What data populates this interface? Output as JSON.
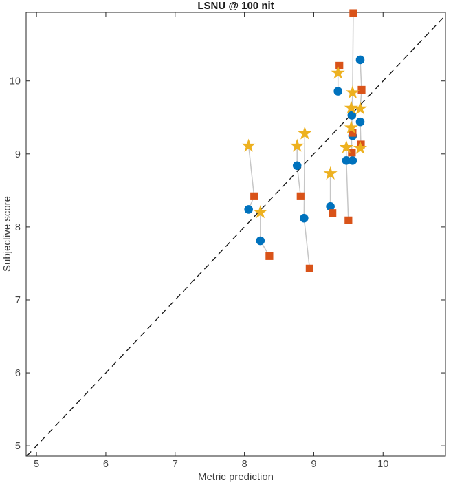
{
  "chart_data": {
    "type": "scatter",
    "title": "LSNU @ 100 nit",
    "xlabel": "Metric prediction",
    "ylabel": "Subjective score",
    "xlim": [
      4.85,
      10.9
    ],
    "ylim": [
      4.86,
      10.94
    ],
    "xticks": [
      5,
      6,
      7,
      8,
      9,
      10
    ],
    "yticks": [
      5,
      6,
      7,
      8,
      9,
      10
    ],
    "grid": false,
    "legend": null,
    "identity_line": {
      "style": "dashed",
      "color": "#111111",
      "x": [
        4.86,
        10.9
      ],
      "y": [
        4.86,
        10.9
      ]
    },
    "marker_colors": {
      "circle": "#0072BD",
      "square": "#D95319",
      "star": "#EDB120"
    },
    "connector_color": "#c6c6c6",
    "series_markers": [
      "circle",
      "square",
      "star"
    ],
    "groups": [
      {
        "circle": [
          8.06,
          8.24
        ],
        "square": [
          8.14,
          8.42
        ],
        "star": [
          8.06,
          9.11
        ]
      },
      {
        "circle": [
          8.23,
          7.81
        ],
        "square": [
          8.36,
          7.6
        ],
        "star": [
          8.23,
          8.2
        ]
      },
      {
        "circle": [
          8.86,
          8.12
        ],
        "square": [
          8.94,
          7.43
        ],
        "star": [
          8.87,
          9.28
        ]
      },
      {
        "circle": [
          8.76,
          8.84
        ],
        "square": [
          8.81,
          8.42
        ],
        "star": [
          8.76,
          9.11
        ]
      },
      {
        "circle": [
          9.24,
          8.28
        ],
        "square": [
          9.27,
          8.19
        ],
        "star": [
          9.24,
          8.73
        ]
      },
      {
        "circle": [
          9.35,
          9.86
        ],
        "square": [
          9.37,
          10.21
        ],
        "star": [
          9.35,
          10.11
        ]
      },
      {
        "circle": [
          9.55,
          9.53
        ],
        "square": [
          9.57,
          10.93
        ],
        "star": [
          9.56,
          9.84
        ]
      },
      {
        "circle": [
          9.56,
          9.25
        ],
        "square": [
          9.56,
          9.29
        ],
        "star": [
          9.54,
          9.63
        ]
      },
      {
        "circle": [
          9.56,
          8.91
        ],
        "square": [
          9.55,
          9.02
        ],
        "star": [
          9.54,
          9.36
        ]
      },
      {
        "circle": [
          9.67,
          10.29
        ],
        "square": [
          9.69,
          9.88
        ],
        "star": [
          9.67,
          9.62
        ]
      },
      {
        "circle": [
          9.67,
          9.44
        ],
        "square": [
          9.68,
          9.13
        ],
        "star": [
          9.67,
          9.08
        ]
      },
      {
        "circle": [
          9.47,
          8.91
        ],
        "square": [
          9.5,
          8.09
        ],
        "star": [
          9.47,
          9.09
        ]
      }
    ]
  }
}
